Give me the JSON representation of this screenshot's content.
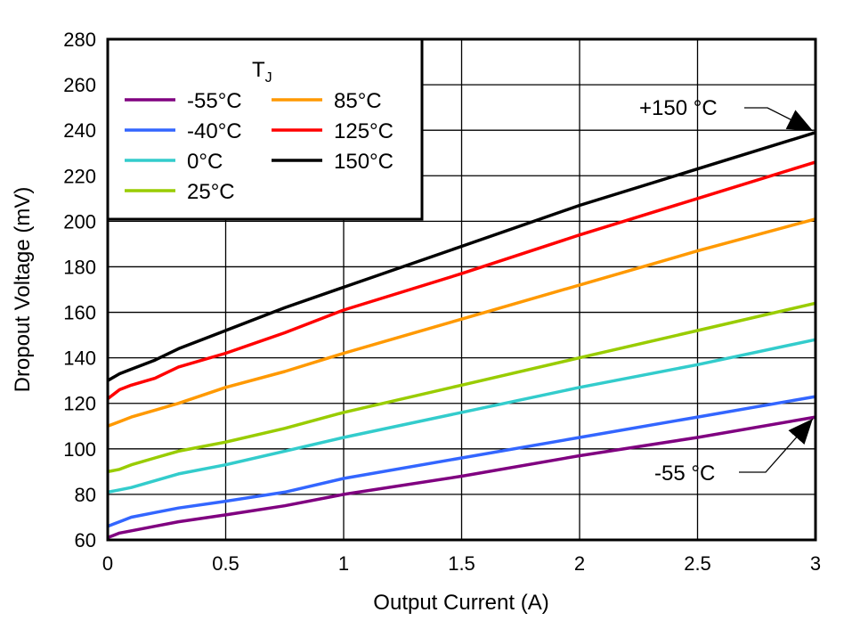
{
  "chart_data": {
    "type": "line",
    "title": "",
    "xlabel": "Output Current (A)",
    "ylabel": "Dropout Voltage (mV)",
    "xlim": [
      0,
      3
    ],
    "ylim": [
      60,
      280
    ],
    "xticks": [
      "0",
      "0.5",
      "1",
      "1.5",
      "2",
      "2.5",
      "3"
    ],
    "yticks": [
      "60",
      "80",
      "100",
      "120",
      "140",
      "160",
      "180",
      "200",
      "220",
      "240",
      "260",
      "280"
    ],
    "grid": true,
    "legend": {
      "title": "T",
      "title_sub": "J",
      "placement": "top-left"
    },
    "x": [
      0,
      0.05,
      0.1,
      0.2,
      0.3,
      0.5,
      0.75,
      1,
      1.5,
      2,
      2.5,
      3
    ],
    "series": [
      {
        "name": "-55°C",
        "color": "#800080",
        "values": [
          61,
          63,
          64,
          66,
          68,
          71,
          75,
          80,
          88,
          97,
          105,
          114
        ]
      },
      {
        "name": "-40°C",
        "color": "#3366ff",
        "values": [
          66,
          68,
          70,
          72,
          74,
          77,
          81,
          87,
          96,
          105,
          114,
          123
        ]
      },
      {
        "name": "0°C",
        "color": "#33cccc",
        "values": [
          81,
          82,
          83,
          86,
          89,
          93,
          99,
          105,
          116,
          127,
          137,
          148
        ]
      },
      {
        "name": "25°C",
        "color": "#99cc00",
        "values": [
          90,
          91,
          93,
          96,
          99,
          103,
          109,
          116,
          128,
          140,
          152,
          164
        ]
      },
      {
        "name": "85°C",
        "color": "#ff9900",
        "values": [
          110,
          112,
          114,
          117,
          120,
          127,
          134,
          142,
          157,
          172,
          187,
          201
        ]
      },
      {
        "name": "125°C",
        "color": "#ff0000",
        "values": [
          122,
          126,
          128,
          131,
          136,
          142,
          151,
          161,
          177,
          194,
          210,
          226
        ]
      },
      {
        "name": "150°C",
        "color": "#000000",
        "values": [
          130,
          133,
          135,
          139,
          144,
          152,
          162,
          171,
          189,
          207,
          223,
          239
        ]
      }
    ],
    "annotations": [
      {
        "text": "+150 °C",
        "x": 3,
        "y": 239
      },
      {
        "text": "-55 °C",
        "x": 3,
        "y": 114
      }
    ]
  }
}
